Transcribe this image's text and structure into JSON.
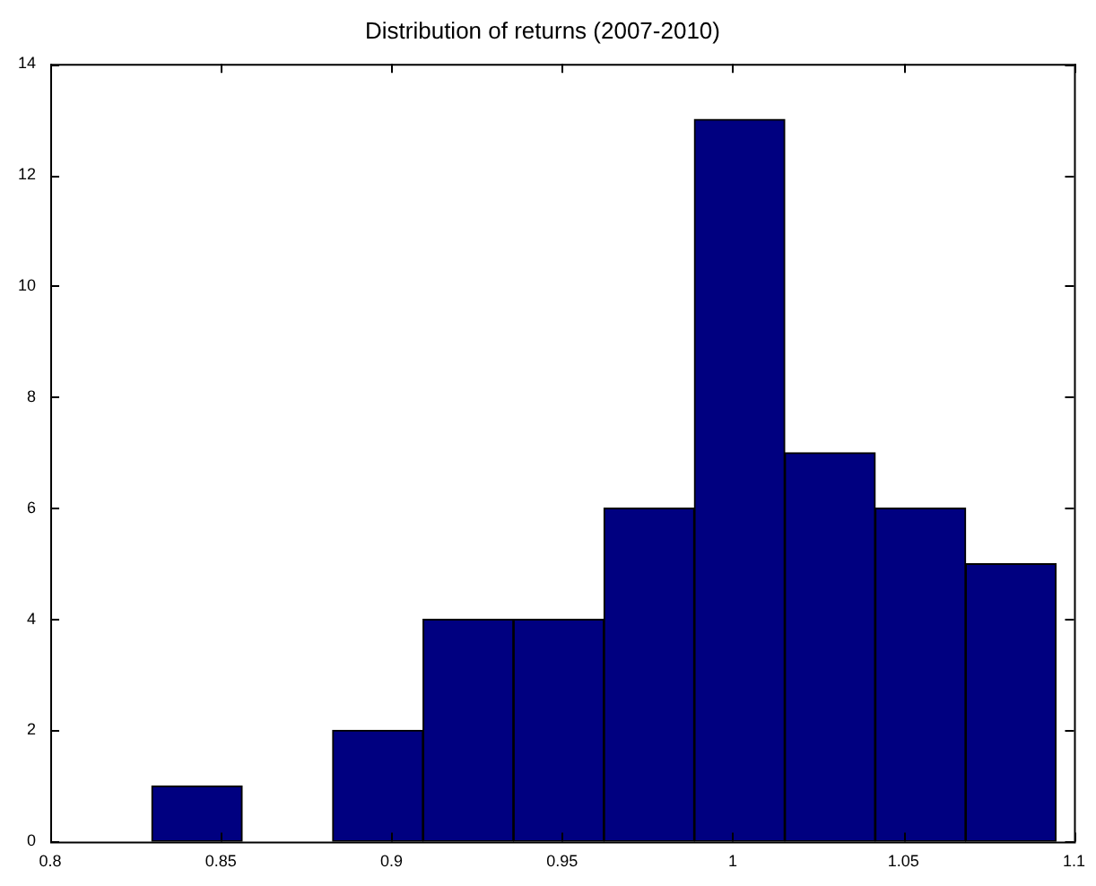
{
  "chart_data": {
    "type": "histogram",
    "title": "Distribution of returns (2007-2010)",
    "bins": [
      0.83,
      0.856,
      0.883,
      0.909,
      0.936,
      0.962,
      0.989,
      1.015,
      1.042,
      1.068,
      1.095
    ],
    "values": [
      1,
      0,
      2,
      4,
      4,
      6,
      13,
      7,
      6,
      5
    ],
    "color": "#000080",
    "xlim": [
      0.8,
      1.1
    ],
    "xticks": [
      0.8,
      0.85,
      0.9,
      0.95,
      1,
      1.05,
      1.1
    ],
    "ylim": [
      0,
      14
    ],
    "yticks": [
      0,
      2,
      4,
      6,
      8,
      10,
      12,
      14
    ],
    "grid": false,
    "legend": false
  }
}
